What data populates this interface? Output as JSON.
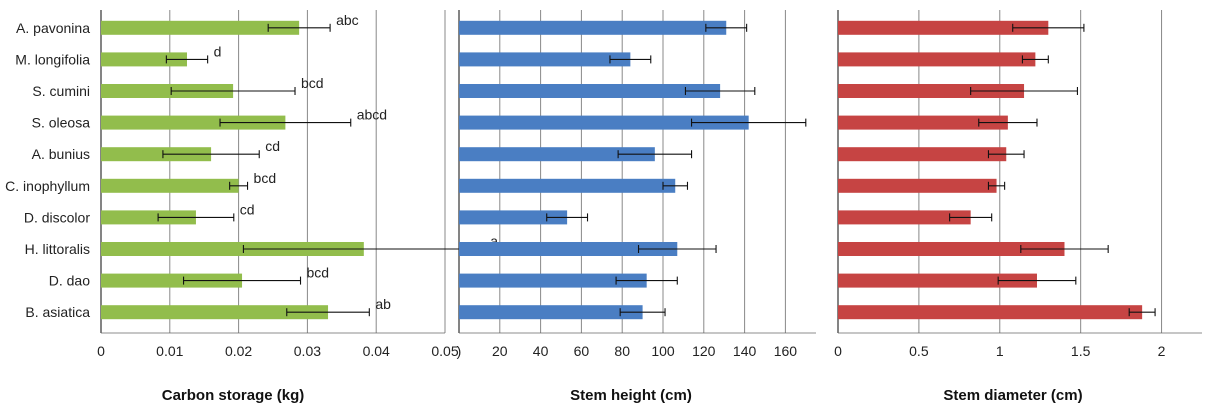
{
  "chart_data": [
    {
      "type": "bar",
      "orientation": "horizontal",
      "xlabel": "Carbon storage (kg)",
      "xlim": [
        0,
        0.05
      ],
      "xticks": [
        "0",
        "0.01",
        "0.02",
        "0.03",
        "0.04",
        "0.05"
      ],
      "grid": "vertical",
      "color": "#92BD4C",
      "categories": [
        "A. pavonina",
        "M. longifolia",
        "S. cumini",
        "S. oleosa",
        "A. bunius",
        "C. inophyllum",
        "D. discolor",
        "H. littoralis",
        "D. dao",
        "B. asiatica"
      ],
      "values": [
        0.0288,
        0.0125,
        0.0192,
        0.0268,
        0.016,
        0.02,
        0.0138,
        0.0382,
        0.0205,
        0.033
      ],
      "errors": [
        0.0045,
        0.003,
        0.009,
        0.0095,
        0.007,
        0.0013,
        0.0055,
        0.0175,
        0.0085,
        0.006
      ],
      "significance": [
        "abc",
        "d",
        "bcd",
        "abcd",
        "cd",
        "bcd",
        "cd",
        "a",
        "bcd",
        "ab"
      ]
    },
    {
      "type": "bar",
      "orientation": "horizontal",
      "xlabel": "Stem height (cm)",
      "xlim": [
        0,
        175
      ],
      "xticks": [
        ")",
        "20",
        "40",
        "60",
        "80",
        "100",
        "120",
        "140",
        "160"
      ],
      "grid": "vertical",
      "color": "#4A7EC3",
      "categories": [
        "A. pavonina",
        "M. longifolia",
        "S. cumini",
        "S. oleosa",
        "A. bunius",
        "C. inophyllum",
        "D. discolor",
        "H. littoralis",
        "D. dao",
        "B. asiatica"
      ],
      "values": [
        131,
        84,
        128,
        142,
        96,
        106,
        53,
        107,
        92,
        90
      ],
      "errors": [
        10,
        10,
        17,
        28,
        18,
        6,
        10,
        19,
        15,
        11
      ]
    },
    {
      "type": "bar",
      "orientation": "horizontal",
      "xlabel": "Stem diameter (cm)",
      "xlim": [
        0,
        2.25
      ],
      "xticks": [
        "0",
        "0.5",
        "1",
        "1.5",
        "2"
      ],
      "grid": "vertical",
      "color": "#C64443",
      "categories": [
        "A. pavonina",
        "M. longifolia",
        "S. cumini",
        "S. oleosa",
        "A. bunius",
        "C. inophyllum",
        "D. discolor",
        "H. littoralis",
        "D. dao",
        "B. asiatica"
      ],
      "values": [
        1.3,
        1.22,
        1.15,
        1.05,
        1.04,
        0.98,
        0.82,
        1.4,
        1.23,
        1.88
      ],
      "errors": [
        0.22,
        0.08,
        0.33,
        0.18,
        0.11,
        0.05,
        0.13,
        0.27,
        0.24,
        0.08
      ]
    }
  ]
}
